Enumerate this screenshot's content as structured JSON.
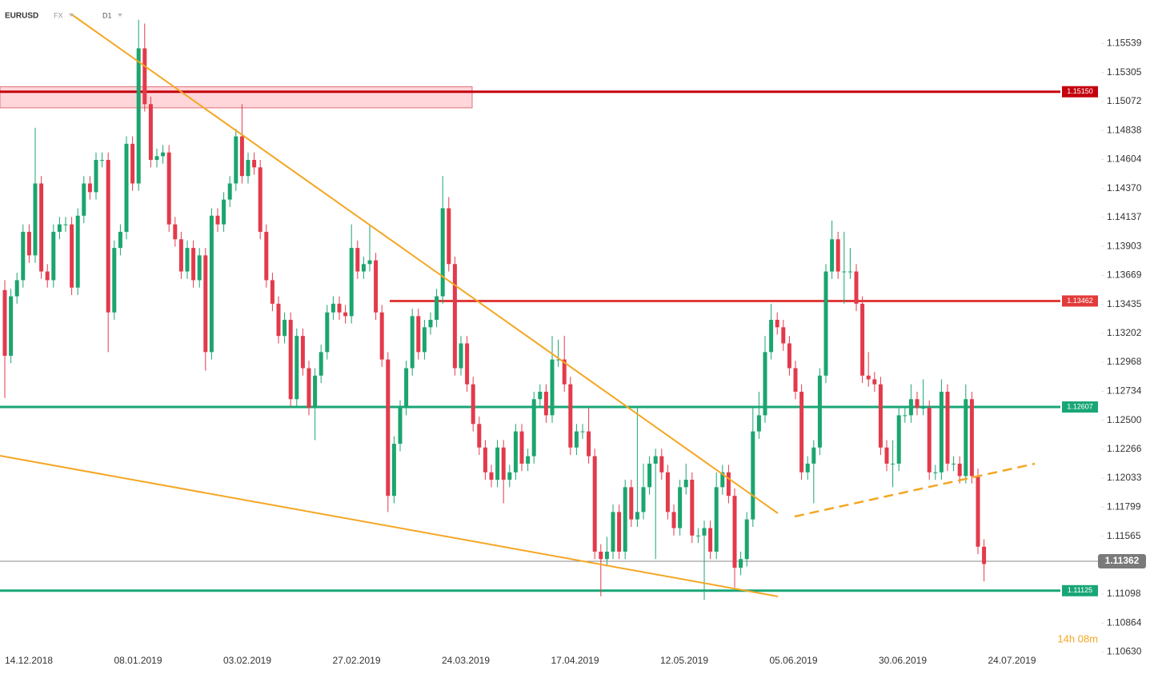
{
  "chart_data": {
    "type": "candlestick",
    "title": "EURUSD",
    "market": "FX",
    "timeframe": "D1",
    "colors": {
      "up": "#1ba56f",
      "down": "#e33a4b"
    },
    "open": [
      1.1355,
      1.1302,
      1.135,
      1.1363,
      1.1402,
      1.1383,
      1.1441,
      1.137,
      1.1363,
      1.1402,
      1.1408,
      1.1408,
      1.1357,
      1.1415,
      1.1441,
      1.1434,
      1.146,
      1.146,
      1.1337,
      1.1389,
      1.1402,
      1.1473,
      1.1441,
      1.155,
      1.1505,
      1.146,
      1.1463,
      1.1466,
      1.1408,
      1.1396,
      1.137,
      1.1389,
      1.1363,
      1.1383,
      1.1305,
      1.1415,
      1.1408,
      1.1428,
      1.1441,
      1.1479,
      1.1447,
      1.146,
      1.1454,
      1.1402,
      1.1363,
      1.1344,
      1.1318,
      1.1331,
      1.1267,
      1.1318,
      1.1292,
      1.126,
      1.1286,
      1.1305,
      1.1337,
      1.1344,
      1.1337,
      1.1334,
      1.1389,
      1.137,
      1.1376,
      1.1379,
      1.1337,
      1.1299,
      1.1189,
      1.1231,
      1.126,
      1.1292,
      1.1334,
      1.1305,
      1.1325,
      1.1331,
      1.135,
      1.1421,
      1.1376,
      1.1292,
      1.1312,
      1.1279,
      1.1247,
      1.1228,
      1.1208,
      1.1202,
      1.1228,
      1.1202,
      1.1208,
      1.1241,
      1.1215,
      1.1221,
      1.1267,
      1.1273,
      1.1254,
      1.1299,
      1.1299,
      1.1279,
      1.1228,
      1.1241,
      1.1241,
      1.1221,
      1.1144,
      1.1138,
      1.1144,
      1.1176,
      1.1144,
      1.1196,
      1.117,
      1.1176,
      1.1196,
      1.1215,
      1.1221,
      1.1208,
      1.1176,
      1.1163,
      1.1196,
      1.1202,
      1.1157,
      1.1157,
      1.1163,
      1.1144,
      1.1196,
      1.1208,
      1.1189,
      1.1131,
      1.1138,
      1.117,
      1.1241,
      1.1254,
      1.1305,
      1.1331,
      1.1325,
      1.1312,
      1.1292,
      1.1273,
      1.1208,
      1.1215,
      1.1228,
      1.1286,
      1.137,
      1.1396,
      1.137,
      1.137,
      1.137,
      1.1344,
      1.1286,
      1.1283,
      1.1279,
      1.1228,
      1.1215,
      1.1215,
      1.1254,
      1.1254,
      1.1267,
      1.126,
      1.126,
      1.1208,
      1.1208,
      1.1273,
      1.1215,
      1.1215,
      1.1205,
      1.1267,
      1.1205,
      1.1148
    ],
    "high": [
      1.1363,
      1.1356,
      1.1369,
      1.1408,
      1.1408,
      1.1486,
      1.1447,
      1.1376,
      1.1408,
      1.1414,
      1.1414,
      1.1414,
      1.1421,
      1.1447,
      1.1447,
      1.1466,
      1.1466,
      1.1466,
      1.1395,
      1.1408,
      1.1479,
      1.1479,
      1.1573,
      1.157,
      1.1511,
      1.1469,
      1.1472,
      1.1472,
      1.1414,
      1.1402,
      1.1395,
      1.1395,
      1.1389,
      1.1389,
      1.1421,
      1.1421,
      1.1434,
      1.1447,
      1.1485,
      1.1505,
      1.1466,
      1.1466,
      1.146,
      1.1408,
      1.1369,
      1.135,
      1.1337,
      1.1337,
      1.1324,
      1.1324,
      1.1298,
      1.1292,
      1.1311,
      1.1343,
      1.135,
      1.135,
      1.1343,
      1.1408,
      1.1395,
      1.1382,
      1.1408,
      1.1385,
      1.1343,
      1.1305,
      1.1237,
      1.1266,
      1.1298,
      1.134,
      1.134,
      1.1331,
      1.1337,
      1.1356,
      1.1447,
      1.143,
      1.1382,
      1.1318,
      1.1318,
      1.1285,
      1.1253,
      1.1234,
      1.1214,
      1.1234,
      1.1234,
      1.1214,
      1.1247,
      1.1247,
      1.1227,
      1.1273,
      1.1279,
      1.1279,
      1.1318,
      1.1315,
      1.1318,
      1.1285,
      1.1247,
      1.1247,
      1.126,
      1.1227,
      1.115,
      1.1156,
      1.1182,
      1.1182,
      1.1202,
      1.1202,
      1.126,
      1.1215,
      1.1221,
      1.1227,
      1.1227,
      1.1214,
      1.1182,
      1.1202,
      1.1215,
      1.1208,
      1.1163,
      1.1169,
      1.1169,
      1.1208,
      1.1214,
      1.1214,
      1.1195,
      1.1144,
      1.1176,
      1.126,
      1.1273,
      1.1318,
      1.1344,
      1.1337,
      1.1331,
      1.1318,
      1.1298,
      1.1279,
      1.1221,
      1.1234,
      1.1292,
      1.1376,
      1.1411,
      1.1402,
      1.1402,
      1.1389,
      1.1376,
      1.135,
      1.1305,
      1.1289,
      1.1285,
      1.1234,
      1.1234,
      1.126,
      1.126,
      1.1279,
      1.1273,
      1.1283,
      1.1266,
      1.1214,
      1.1283,
      1.1279,
      1.1221,
      1.1221,
      1.1279,
      1.1273,
      1.1211,
      1.1154
    ],
    "low": [
      1.1268,
      1.1296,
      1.1344,
      1.1357,
      1.1377,
      1.1377,
      1.1364,
      1.1357,
      1.1357,
      1.1396,
      1.1402,
      1.1351,
      1.1351,
      1.1409,
      1.1428,
      1.1428,
      1.1454,
      1.1305,
      1.1331,
      1.1383,
      1.1396,
      1.1435,
      1.1435,
      1.1499,
      1.1454,
      1.1454,
      1.1457,
      1.1402,
      1.139,
      1.1364,
      1.1364,
      1.1357,
      1.1357,
      1.129,
      1.1299,
      1.1402,
      1.1402,
      1.1422,
      1.1435,
      1.1441,
      1.1441,
      1.1448,
      1.1396,
      1.1357,
      1.1338,
      1.1312,
      1.1312,
      1.1261,
      1.1261,
      1.1286,
      1.1254,
      1.1234,
      1.128,
      1.1299,
      1.1331,
      1.1331,
      1.1328,
      1.1328,
      1.1364,
      1.1364,
      1.137,
      1.1331,
      1.1293,
      1.1176,
      1.1183,
      1.1225,
      1.1254,
      1.1286,
      1.1299,
      1.1299,
      1.1319,
      1.1325,
      1.1344,
      1.137,
      1.1286,
      1.1286,
      1.1273,
      1.1241,
      1.1222,
      1.1202,
      1.1196,
      1.1196,
      1.1183,
      1.1196,
      1.1202,
      1.1209,
      1.1209,
      1.1215,
      1.1261,
      1.1248,
      1.1248,
      1.1293,
      1.1273,
      1.1222,
      1.1222,
      1.1235,
      1.1215,
      1.1138,
      1.1108,
      1.1132,
      1.1138,
      1.1138,
      1.1138,
      1.1164,
      1.1164,
      1.117,
      1.119,
      1.1138,
      1.1202,
      1.117,
      1.1157,
      1.1157,
      1.119,
      1.1151,
      1.1151,
      1.1105,
      1.1138,
      1.1138,
      1.119,
      1.1183,
      1.1115,
      1.1125,
      1.1132,
      1.1164,
      1.1235,
      1.1248,
      1.1299,
      1.1319,
      1.1306,
      1.1286,
      1.1267,
      1.1202,
      1.1202,
      1.1183,
      1.1222,
      1.128,
      1.1364,
      1.1364,
      1.1344,
      1.1364,
      1.1338,
      1.128,
      1.1277,
      1.1273,
      1.1222,
      1.1209,
      1.1196,
      1.1209,
      1.1248,
      1.1248,
      1.1254,
      1.1254,
      1.1202,
      1.1202,
      1.1202,
      1.1209,
      1.1209,
      1.1199,
      1.1199,
      1.1199,
      1.1142,
      1.112
    ],
    "close": [
      1.1302,
      1.135,
      1.1363,
      1.1402,
      1.1383,
      1.1441,
      1.137,
      1.1363,
      1.1402,
      1.1408,
      1.1408,
      1.1357,
      1.1415,
      1.1441,
      1.1434,
      1.146,
      1.146,
      1.1337,
      1.1389,
      1.1402,
      1.1473,
      1.1441,
      1.155,
      1.1505,
      1.146,
      1.1463,
      1.1466,
      1.1408,
      1.1396,
      1.137,
      1.1389,
      1.1363,
      1.1383,
      1.1305,
      1.1415,
      1.1408,
      1.1428,
      1.1441,
      1.1479,
      1.1447,
      1.146,
      1.1454,
      1.1402,
      1.1363,
      1.1344,
      1.1318,
      1.1331,
      1.1267,
      1.1318,
      1.1292,
      1.126,
      1.1286,
      1.1305,
      1.1337,
      1.1344,
      1.1337,
      1.1334,
      1.1389,
      1.137,
      1.1376,
      1.1379,
      1.1337,
      1.1299,
      1.1189,
      1.1231,
      1.126,
      1.1292,
      1.1334,
      1.1305,
      1.1325,
      1.1331,
      1.135,
      1.1421,
      1.1376,
      1.1292,
      1.1312,
      1.1279,
      1.1247,
      1.1228,
      1.1208,
      1.1202,
      1.1228,
      1.1202,
      1.1208,
      1.1241,
      1.1215,
      1.1221,
      1.1267,
      1.1273,
      1.1254,
      1.1299,
      1.1299,
      1.1279,
      1.1228,
      1.1241,
      1.1241,
      1.1221,
      1.1144,
      1.1138,
      1.1144,
      1.1176,
      1.1144,
      1.1196,
      1.117,
      1.1176,
      1.1196,
      1.1215,
      1.1221,
      1.1208,
      1.1176,
      1.1163,
      1.1196,
      1.1202,
      1.1157,
      1.1157,
      1.1163,
      1.1144,
      1.1196,
      1.1208,
      1.1189,
      1.1131,
      1.1138,
      1.117,
      1.1241,
      1.1254,
      1.1305,
      1.1331,
      1.1325,
      1.1312,
      1.1292,
      1.1273,
      1.1208,
      1.1215,
      1.1228,
      1.1286,
      1.137,
      1.1396,
      1.137,
      1.137,
      1.137,
      1.1344,
      1.1286,
      1.1283,
      1.1279,
      1.1228,
      1.1215,
      1.1215,
      1.1254,
      1.1254,
      1.1267,
      1.126,
      1.126,
      1.1208,
      1.1208,
      1.1273,
      1.1215,
      1.1215,
      1.1205,
      1.1267,
      1.1205,
      1.1148,
      1.1134
    ],
    "ylim": [
      1.10453,
      1.1589
    ],
    "yticks": [
      1.15539,
      1.15305,
      1.15072,
      1.14838,
      1.14604,
      {
        "value": 1.1437,
        "label": "1.14370"
      },
      1.14137,
      1.13903,
      1.13669,
      1.13435,
      1.13202,
      1.12968,
      1.12734,
      {
        "value": 1.125,
        "label": "1.12500"
      },
      1.12266,
      1.12033,
      1.11799,
      1.11565,
      1.11098,
      1.10864,
      {
        "value": 1.1063,
        "label": "1.10630"
      }
    ],
    "x_labels": [
      "14.12.2018",
      "08.01.2019",
      "03.02.2019",
      "27.02.2019",
      "24.03.2019",
      "17.04.2019",
      "12.05.2019",
      "05.06.2019",
      "30.06.2019",
      "24.07.2019"
    ],
    "zone": [
      1.1502,
      1.1519
    ],
    "levels": [
      {
        "value": 1.1515,
        "label": "1.15150",
        "color": "#c4000e"
      },
      {
        "value": 1.13462,
        "color": "#e23b3b"
      },
      {
        "value": 1.12607,
        "color": "#19a677"
      },
      {
        "value": 1.11125,
        "color": "#19a677"
      }
    ],
    "current": {
      "value": 1.11362,
      "color": "#7a7a7a"
    },
    "countdown": "14h 08m"
  }
}
